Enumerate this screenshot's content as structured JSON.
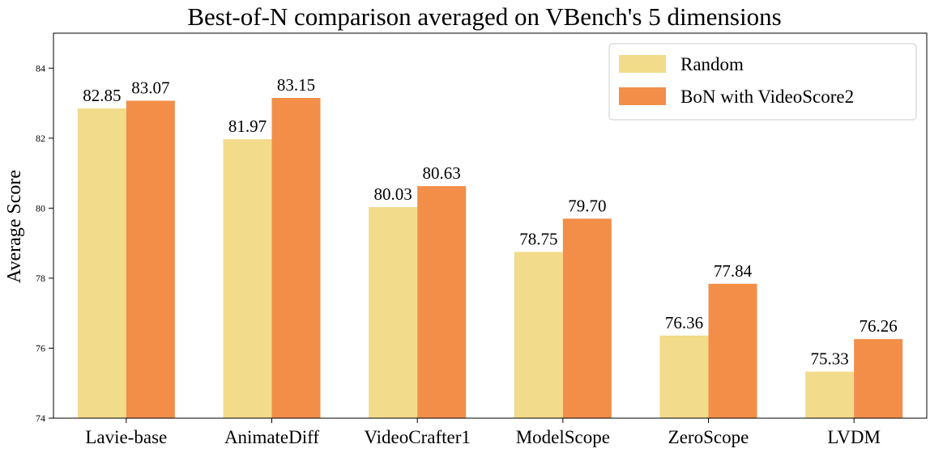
{
  "chart_data": {
    "type": "bar",
    "title": "Best-of-N comparison averaged on VBench's 5 dimensions",
    "xlabel": "",
    "ylabel": "Average Score",
    "ylim": [
      74,
      85
    ],
    "yticks": [
      "74",
      "76",
      "78",
      "80",
      "82",
      "84"
    ],
    "categories": [
      "Lavie-base",
      "AnimateDiff",
      "VideoCrafter1",
      "ModelScope",
      "ZeroScope",
      "LVDM"
    ],
    "series": [
      {
        "name": "Random",
        "color": "#f2db8a",
        "values": [
          82.85,
          81.97,
          80.03,
          78.75,
          76.36,
          75.33
        ],
        "labels": [
          "82.85",
          "81.97",
          "80.03",
          "78.75",
          "76.36",
          "75.33"
        ]
      },
      {
        "name": "BoN with VideoScore2",
        "color": "#f28e48",
        "values": [
          83.07,
          83.15,
          80.63,
          79.7,
          77.84,
          76.26
        ],
        "labels": [
          "83.07",
          "83.15",
          "80.63",
          "79.70",
          "77.84",
          "76.26"
        ]
      }
    ],
    "grid": false,
    "legend_position": "top-right"
  }
}
